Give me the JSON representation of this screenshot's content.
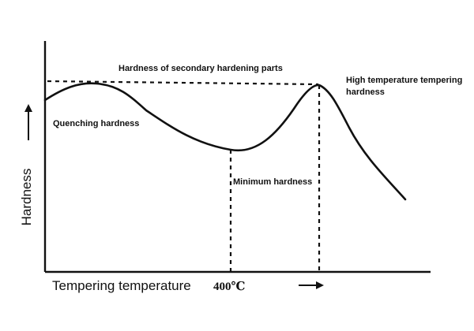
{
  "chart_data": {
    "type": "line",
    "xlabel": "Tempering temperature",
    "ylabel": "Hardness",
    "x_ticks": [
      "400℃"
    ],
    "annotations": {
      "quenching": "Quenching hardness",
      "secondary": "Hardness of secondary hardening parts",
      "minimum": "Minimum hardness",
      "high_temp_line1": "High temperature tempering",
      "high_temp_line2": "hardness"
    },
    "grid": false,
    "series": [
      {
        "values": []
      }
    ]
  }
}
